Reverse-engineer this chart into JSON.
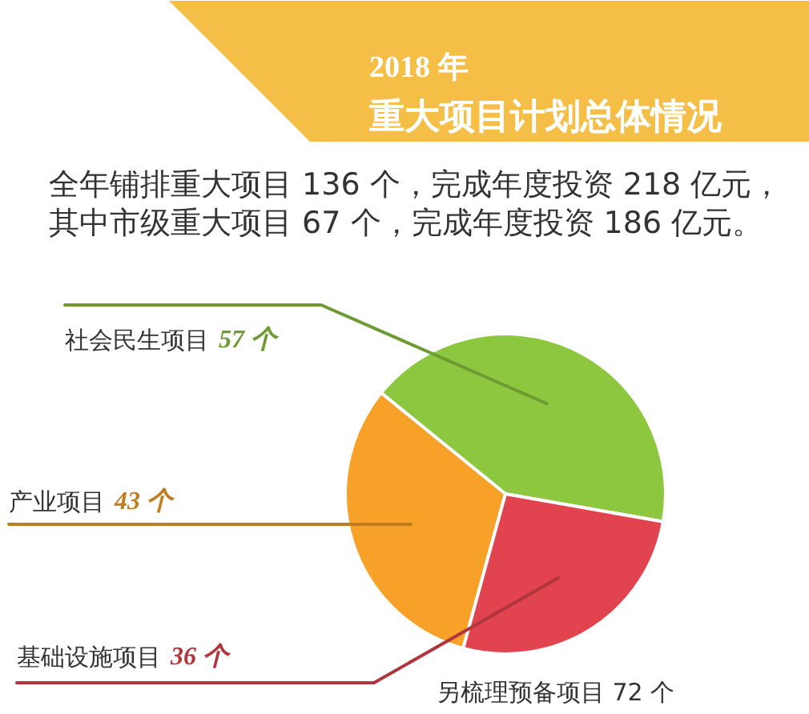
{
  "chart_data": {
    "type": "pie",
    "title": "2018 年",
    "subtitle": "重大项目计划总体情况",
    "categories": [
      "社会民生项目",
      "产业项目",
      "基础设施项目"
    ],
    "values": [
      57,
      43,
      36
    ],
    "colors": [
      "#8dc63f",
      "#f7a128",
      "#e2444f"
    ],
    "value_labels": [
      "57 个",
      "43 个",
      "36 个"
    ],
    "annotations": [
      "全年铺排重大项目 136 个，完成年度投资 218 亿元，",
      "其中市级重大项目 67 个，完成年度投资 186 亿元。",
      "另梳理预备项目 72 个"
    ]
  }
}
